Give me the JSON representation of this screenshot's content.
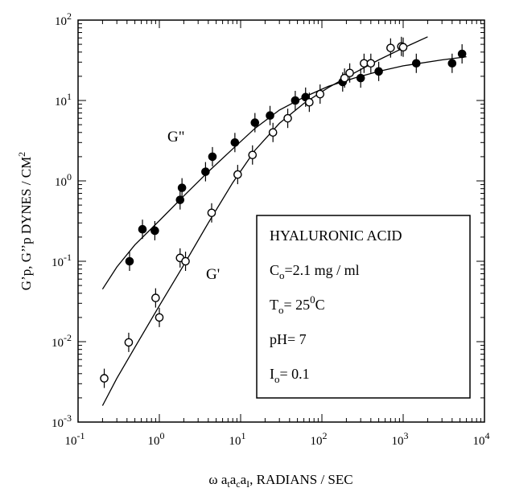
{
  "chart_data": {
    "type": "scatter",
    "x_scale": "log",
    "y_scale": "log",
    "xlim": [
      0.1,
      10000
    ],
    "ylim": [
      0.001,
      100
    ],
    "grid": false,
    "x_ticks": [
      {
        "value": 0.1,
        "base": "10",
        "exp": "-1"
      },
      {
        "value": 1,
        "base": "10",
        "exp": "0"
      },
      {
        "value": 10,
        "base": "10",
        "exp": "1"
      },
      {
        "value": 100,
        "base": "10",
        "exp": "2"
      },
      {
        "value": 1000,
        "base": "10",
        "exp": "3"
      },
      {
        "value": 10000,
        "base": "10",
        "exp": "4"
      }
    ],
    "y_ticks": [
      {
        "value": 0.001,
        "base": "10",
        "exp": "-3"
      },
      {
        "value": 0.01,
        "base": "10",
        "exp": "-2"
      },
      {
        "value": 0.1,
        "base": "10",
        "exp": "-1"
      },
      {
        "value": 1,
        "base": "10",
        "exp": "0"
      },
      {
        "value": 10,
        "base": "10",
        "exp": "1"
      },
      {
        "value": 100,
        "base": "10",
        "exp": "2"
      }
    ],
    "xlabel": {
      "main": "ω a",
      "sub1": "t",
      "mid1": "a",
      "sub2": "c",
      "mid2": "a",
      "sub3": "I",
      "tail": ", RADIANS / SEC"
    },
    "ylabel": {
      "main": "G’p, G’’p  DYNES / CM",
      "sup": "2"
    },
    "series": [
      {
        "name": "G\"",
        "marker": "filled",
        "color": "#000000",
        "points": [
          [
            0.43,
            0.1
          ],
          [
            0.62,
            0.25
          ],
          [
            0.88,
            0.24
          ],
          [
            1.8,
            0.58
          ],
          [
            1.9,
            0.82
          ],
          [
            3.7,
            1.3
          ],
          [
            4.5,
            2.0
          ],
          [
            8.5,
            3.0
          ],
          [
            15,
            5.3
          ],
          [
            23,
            6.5
          ],
          [
            47,
            10
          ],
          [
            63,
            11
          ],
          [
            180,
            17
          ],
          [
            300,
            19
          ],
          [
            500,
            23
          ],
          [
            1450,
            29
          ],
          [
            4000,
            29
          ],
          [
            5300,
            38
          ]
        ],
        "curve": [
          [
            0.2,
            0.045
          ],
          [
            0.3,
            0.085
          ],
          [
            0.5,
            0.16
          ],
          [
            1,
            0.32
          ],
          [
            2,
            0.65
          ],
          [
            4,
            1.3
          ],
          [
            8,
            2.5
          ],
          [
            15,
            4.5
          ],
          [
            30,
            7.6
          ],
          [
            60,
            11
          ],
          [
            120,
            15
          ],
          [
            250,
            19
          ],
          [
            500,
            23
          ],
          [
            1000,
            27
          ],
          [
            3000,
            32
          ],
          [
            6000,
            35
          ]
        ]
      },
      {
        "name": "G'",
        "marker": "open",
        "color": "#000000",
        "points": [
          [
            0.21,
            0.0035
          ],
          [
            0.42,
            0.0098
          ],
          [
            0.9,
            0.035
          ],
          [
            1.0,
            0.02
          ],
          [
            1.8,
            0.11
          ],
          [
            2.1,
            0.1
          ],
          [
            4.4,
            0.4
          ],
          [
            9.2,
            1.2
          ],
          [
            14,
            2.1
          ],
          [
            25,
            4.0
          ],
          [
            38,
            6.0
          ],
          [
            70,
            9.5
          ],
          [
            95,
            12
          ],
          [
            190,
            19
          ],
          [
            220,
            22
          ],
          [
            330,
            29
          ],
          [
            400,
            29
          ],
          [
            700,
            45
          ],
          [
            950,
            47
          ],
          [
            1000,
            46
          ]
        ],
        "curve": [
          [
            0.2,
            0.0016
          ],
          [
            0.3,
            0.0035
          ],
          [
            0.5,
            0.0085
          ],
          [
            1,
            0.028
          ],
          [
            2,
            0.09
          ],
          [
            4,
            0.3
          ],
          [
            8,
            0.95
          ],
          [
            15,
            2.4
          ],
          [
            30,
            5.2
          ],
          [
            60,
            9.2
          ],
          [
            120,
            14.5
          ],
          [
            250,
            22
          ],
          [
            500,
            32
          ],
          [
            1000,
            45
          ],
          [
            2000,
            62
          ]
        ]
      }
    ],
    "annotations": {
      "label_gpp": "G\"",
      "label_gp": "G'",
      "box": {
        "title": "HYALURONIC ACID",
        "conc": {
          "main": "C",
          "sub": "o",
          "rest": "=2.1 mg / ml"
        },
        "temp": {
          "main": "T",
          "sub": "o",
          "rest1": "= 25",
          "sup": "0",
          "rest2": "C"
        },
        "ph": "pH= 7",
        "ionic": {
          "main": "I",
          "sub": "o",
          "rest": "= 0.1"
        }
      }
    }
  }
}
